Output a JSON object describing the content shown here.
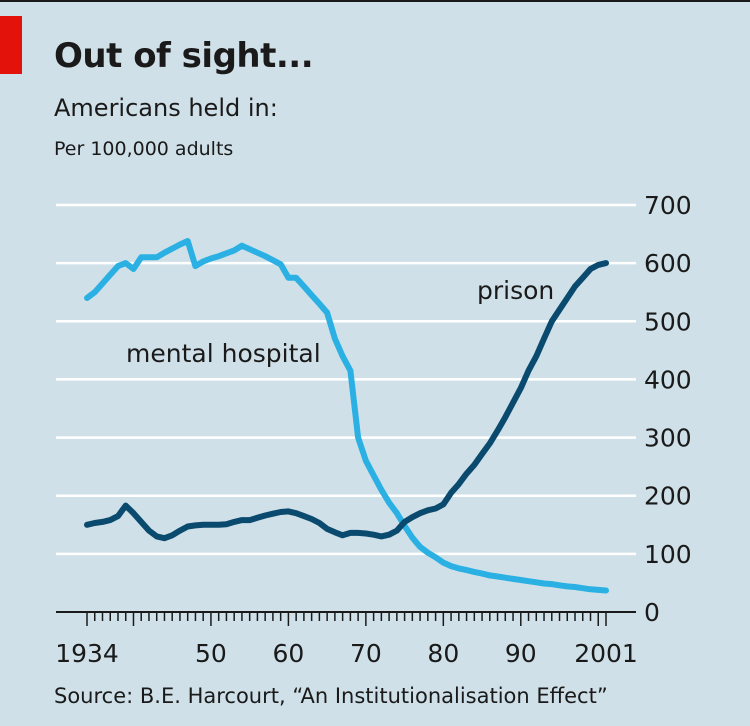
{
  "header": {
    "title": "Out of sight...",
    "subtitle": "Americans held in:",
    "unit": "Per 100,000 adults"
  },
  "footer": {
    "source": "Source: B.E. Harcourt, “An Institutionalisation Effect”"
  },
  "colors": {
    "background": "#cfe0e8",
    "mental_hospital": "#2ab0e3",
    "prison": "#0a4a6e",
    "gridline": "#ffffff",
    "brand_red": "#e3120b"
  },
  "chart_data": {
    "type": "line",
    "title": "Out of sight...",
    "subtitle": "Americans held in:",
    "ylabel": "Per 100,000 adults",
    "xlim": [
      1934,
      2001
    ],
    "ylim": [
      0,
      700
    ],
    "y_axis_side": "right",
    "y_ticks": [
      0,
      100,
      200,
      300,
      400,
      500,
      600,
      700
    ],
    "x_tick_labels": [
      {
        "year": 1934,
        "label": "1934"
      },
      {
        "year": 1950,
        "label": "50"
      },
      {
        "year": 1960,
        "label": "60"
      },
      {
        "year": 1970,
        "label": "70"
      },
      {
        "year": 1980,
        "label": "80"
      },
      {
        "year": 1990,
        "label": "90"
      },
      {
        "year": 2001,
        "label": "2001"
      }
    ],
    "grid": true,
    "series": [
      {
        "name": "mental hospital",
        "x": [
          1934,
          1935,
          1936,
          1937,
          1938,
          1939,
          1940,
          1941,
          1942,
          1943,
          1944,
          1945,
          1946,
          1947,
          1948,
          1949,
          1950,
          1951,
          1952,
          1953,
          1954,
          1955,
          1956,
          1957,
          1958,
          1959,
          1960,
          1961,
          1962,
          1963,
          1964,
          1965,
          1966,
          1967,
          1968,
          1969,
          1970,
          1971,
          1972,
          1973,
          1974,
          1975,
          1976,
          1977,
          1978,
          1979,
          1980,
          1981,
          1982,
          1983,
          1984,
          1985,
          1986,
          1987,
          1988,
          1989,
          1990,
          1991,
          1992,
          1993,
          1994,
          1995,
          1996,
          1997,
          1998,
          1999,
          2000,
          2001
        ],
        "values": [
          540,
          550,
          565,
          580,
          595,
          600,
          590,
          610,
          610,
          610,
          618,
          625,
          632,
          638,
          595,
          603,
          608,
          612,
          617,
          622,
          630,
          624,
          618,
          612,
          605,
          598,
          575,
          575,
          560,
          545,
          530,
          515,
          470,
          440,
          415,
          300,
          260,
          235,
          210,
          188,
          170,
          148,
          128,
          112,
          102,
          94,
          85,
          79,
          75,
          72,
          69,
          66,
          63,
          61,
          59,
          57,
          55,
          53,
          51,
          49,
          48,
          46,
          44,
          43,
          41,
          39,
          38,
          37
        ]
      },
      {
        "name": "prison",
        "x": [
          1934,
          1935,
          1936,
          1937,
          1938,
          1939,
          1940,
          1941,
          1942,
          1943,
          1944,
          1945,
          1946,
          1947,
          1948,
          1949,
          1950,
          1951,
          1952,
          1953,
          1954,
          1955,
          1956,
          1957,
          1958,
          1959,
          1960,
          1961,
          1962,
          1963,
          1964,
          1965,
          1966,
          1967,
          1968,
          1969,
          1970,
          1971,
          1972,
          1973,
          1974,
          1975,
          1976,
          1977,
          1978,
          1979,
          1980,
          1981,
          1982,
          1983,
          1984,
          1985,
          1986,
          1987,
          1988,
          1989,
          1990,
          1991,
          1992,
          1993,
          1994,
          1995,
          1996,
          1997,
          1998,
          1999,
          2000,
          2001
        ],
        "values": [
          150,
          153,
          155,
          158,
          165,
          183,
          170,
          155,
          140,
          130,
          127,
          132,
          140,
          147,
          149,
          150,
          150,
          150,
          151,
          155,
          158,
          158,
          162,
          166,
          169,
          172,
          173,
          170,
          165,
          160,
          153,
          143,
          137,
          132,
          136,
          136,
          135,
          133,
          130,
          133,
          140,
          155,
          163,
          170,
          175,
          178,
          185,
          205,
          220,
          238,
          253,
          272,
          290,
          312,
          335,
          360,
          385,
          415,
          440,
          470,
          500,
          520,
          540,
          560,
          575,
          590,
          597,
          600
        ]
      }
    ],
    "annotations": [
      {
        "text": "mental hospital",
        "series": "mental hospital"
      },
      {
        "text": "prison",
        "series": "prison"
      }
    ]
  }
}
